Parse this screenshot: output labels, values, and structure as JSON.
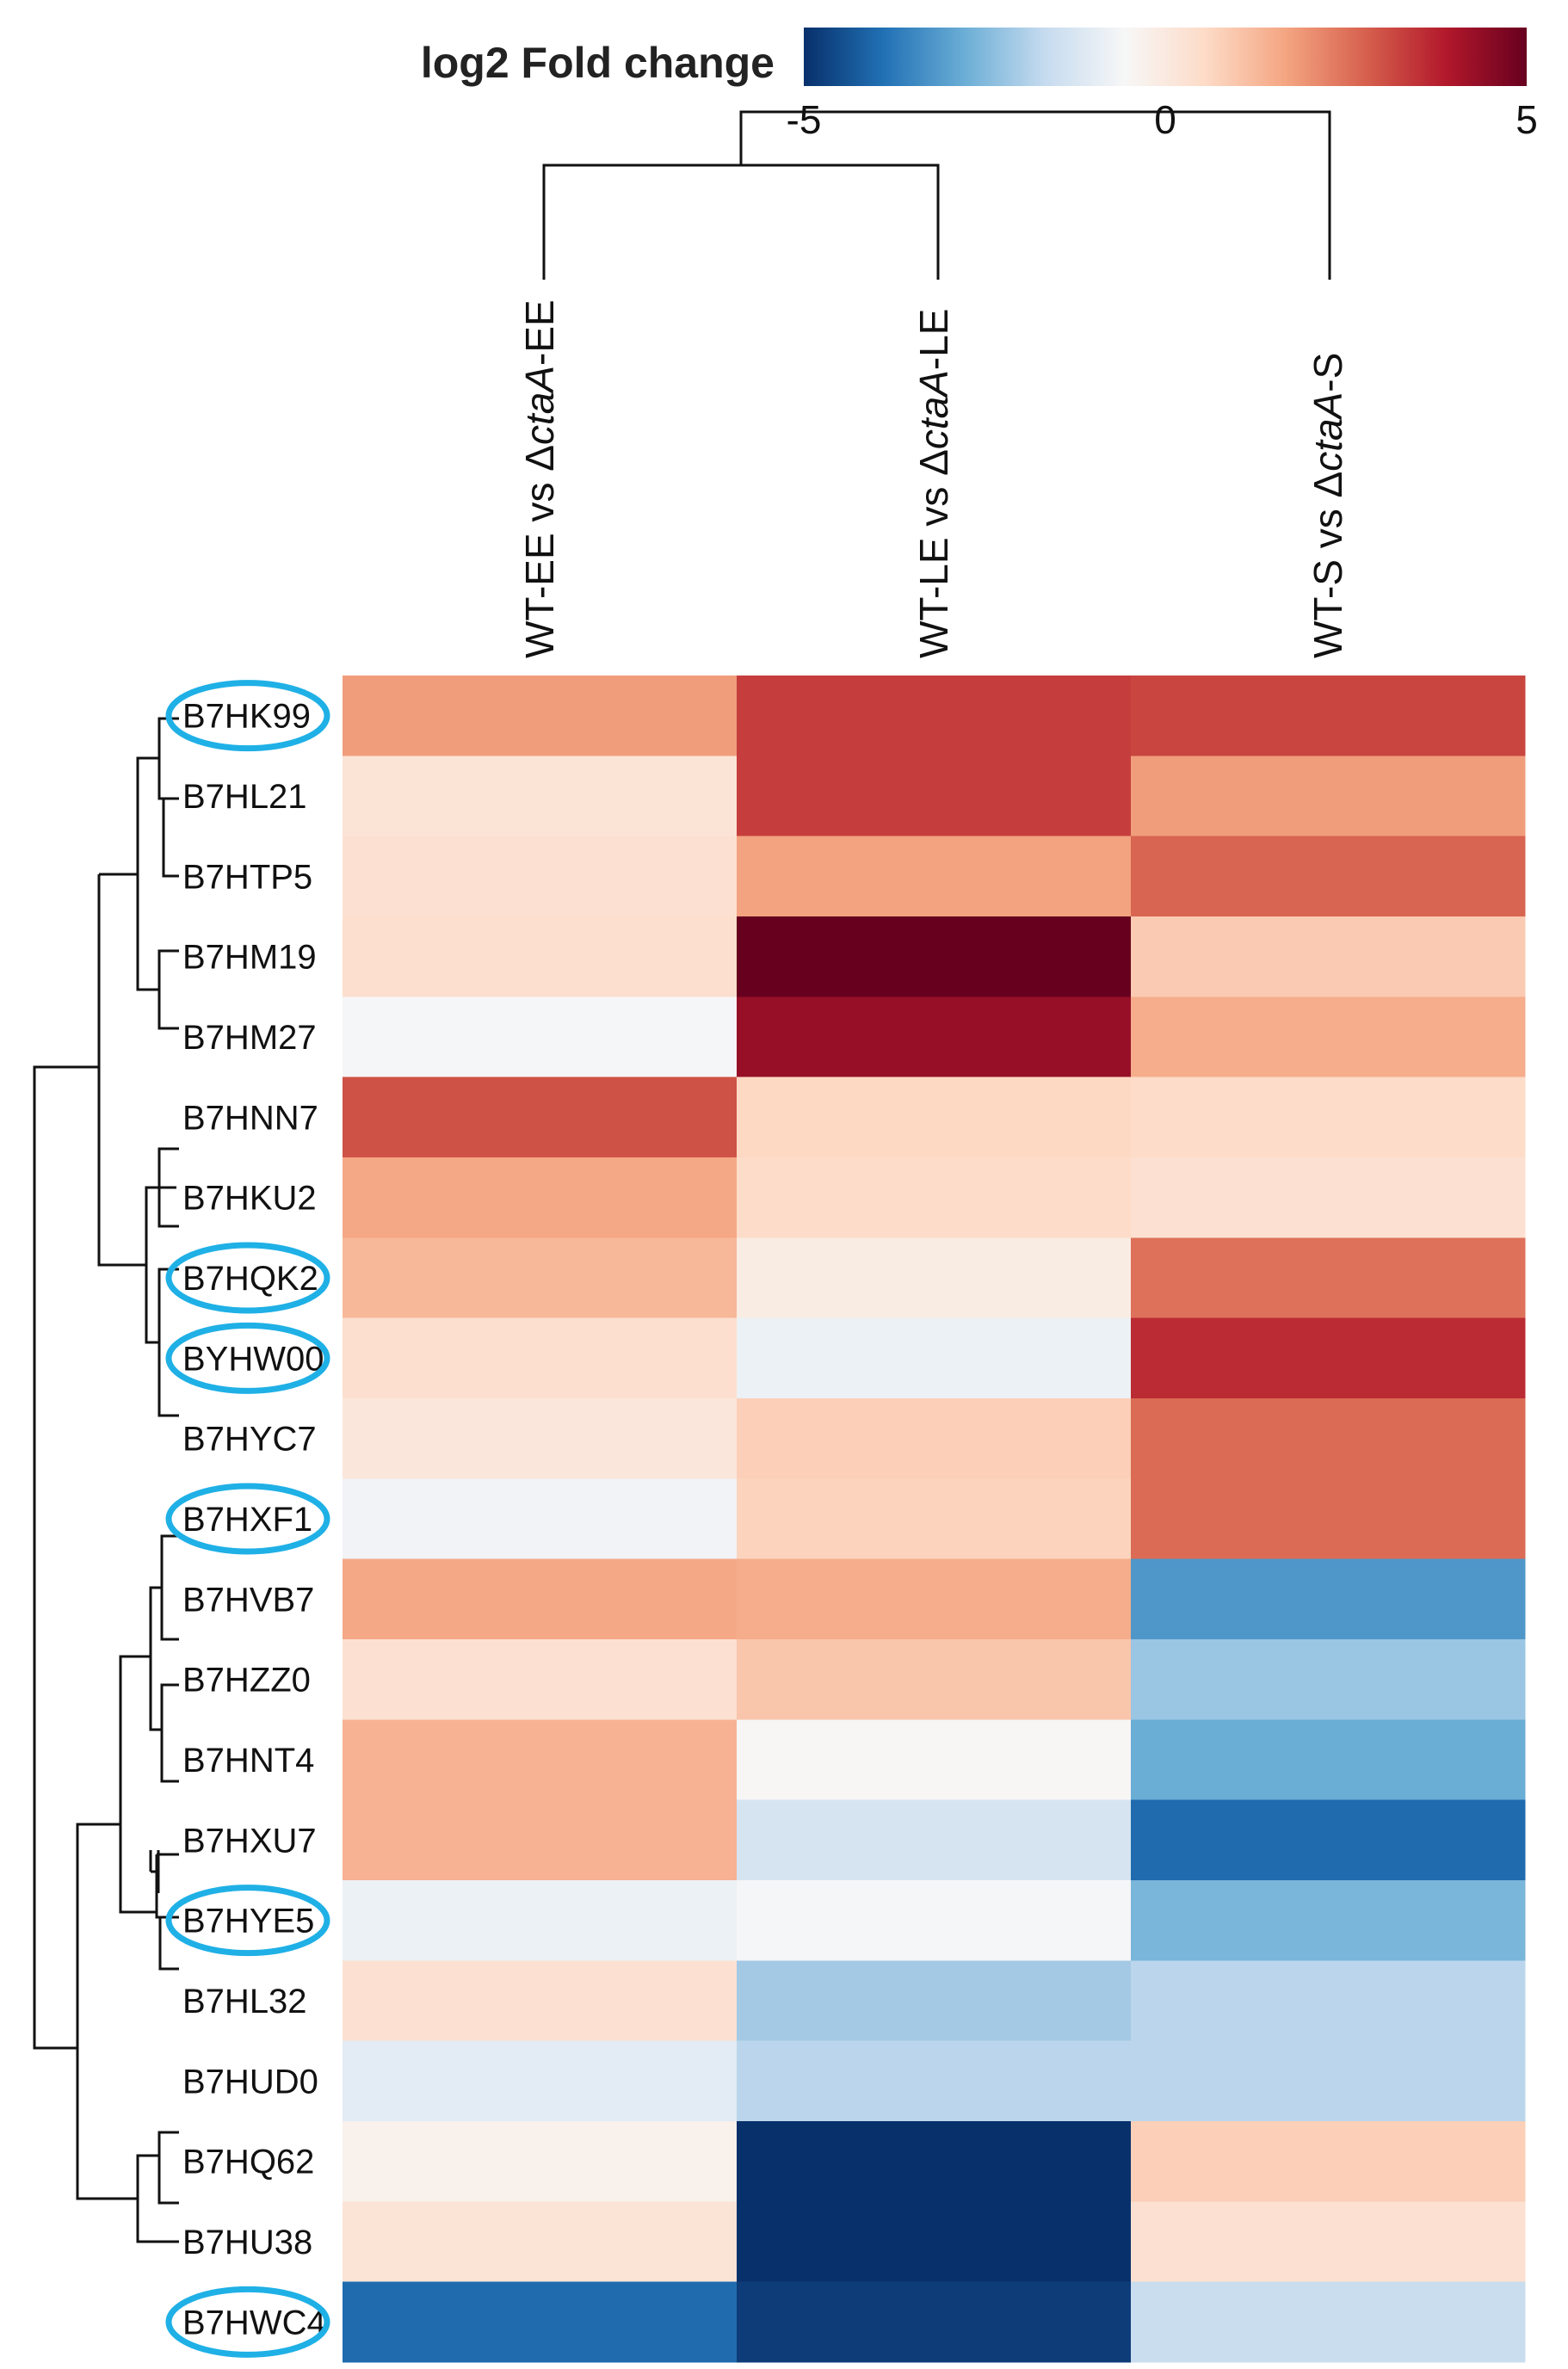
{
  "chart_data": {
    "type": "heatmap",
    "legend": {
      "title": "log2 Fold change",
      "range": [
        -5,
        5
      ],
      "ticks": [
        "-5",
        "0",
        "5"
      ],
      "tick_values": [
        -5,
        0,
        5
      ],
      "colors": [
        "#08306b",
        "#2171b5",
        "#6baed6",
        "#c6dbef",
        "#f7f7f7",
        "#fddbc7",
        "#f4a582",
        "#d6604d",
        "#b2182b",
        "#67001f"
      ]
    },
    "columns": [
      {
        "pre": "WT-EE vs Δ",
        "italic": "ctaA",
        "post": "-EE"
      },
      {
        "pre": "WT-LE vs Δ",
        "italic": "ctaA",
        "post": "-LE"
      },
      {
        "pre": "WT-S vs Δ",
        "italic": "ctaA",
        "post": "-S"
      }
    ],
    "rows": [
      {
        "label": "B7HK99",
        "values": [
          1.8,
          3.3,
          3.2
        ],
        "highlighted": true
      },
      {
        "label": "B7HL21",
        "values": [
          0.2,
          3.3,
          1.8
        ],
        "highlighted": false
      },
      {
        "label": "B7HTP5",
        "values": [
          0.3,
          1.7,
          2.7
        ],
        "highlighted": false
      },
      {
        "label": "B7HM19",
        "values": [
          0.4,
          5.0,
          0.9
        ],
        "highlighted": false
      },
      {
        "label": "B7HM27",
        "values": [
          -0.6,
          4.3,
          1.5
        ],
        "highlighted": false
      },
      {
        "label": "B7HNN7",
        "values": [
          3.0,
          0.6,
          0.5
        ],
        "highlighted": false
      },
      {
        "label": "B7HKU2",
        "values": [
          1.6,
          0.5,
          0.3
        ],
        "highlighted": false
      },
      {
        "label": "B7HQK2",
        "values": [
          1.3,
          -0.1,
          2.5
        ],
        "highlighted": true
      },
      {
        "label": "BYHW00",
        "values": [
          0.4,
          -0.8,
          3.6
        ],
        "highlighted": true
      },
      {
        "label": "B7HYC7",
        "values": [
          0.1,
          0.8,
          2.6
        ],
        "highlighted": false
      },
      {
        "label": "B7HXF1",
        "values": [
          -0.7,
          0.7,
          2.6
        ],
        "highlighted": true
      },
      {
        "label": "B7HVB7",
        "values": [
          1.6,
          1.5,
          -3.2
        ],
        "highlighted": false
      },
      {
        "label": "B7HZZ0",
        "values": [
          0.3,
          1.0,
          -2.2
        ],
        "highlighted": false
      },
      {
        "label": "B7HNT4",
        "values": [
          1.4,
          -0.5,
          -2.8
        ],
        "highlighted": false
      },
      {
        "label": "B7HXU7",
        "values": [
          1.4,
          -1.3,
          -4.0
        ],
        "highlighted": false
      },
      {
        "label": "B7HYE5",
        "values": [
          -0.8,
          -0.6,
          -2.6
        ],
        "highlighted": true
      },
      {
        "label": "B7HL32",
        "values": [
          0.3,
          -2.1,
          -1.8
        ],
        "highlighted": false
      },
      {
        "label": "B7HUD0",
        "values": [
          -1.0,
          -1.8,
          -1.8
        ],
        "highlighted": false
      },
      {
        "label": "B7HQ62",
        "values": [
          -0.3,
          -5.0,
          0.8
        ],
        "highlighted": false
      },
      {
        "label": "B7HU38",
        "values": [
          0.2,
          -5.0,
          0.3
        ],
        "highlighted": false
      },
      {
        "label": "B7HWC4",
        "values": [
          -4.0,
          -4.8,
          -1.6
        ],
        "highlighted": true
      }
    ]
  }
}
